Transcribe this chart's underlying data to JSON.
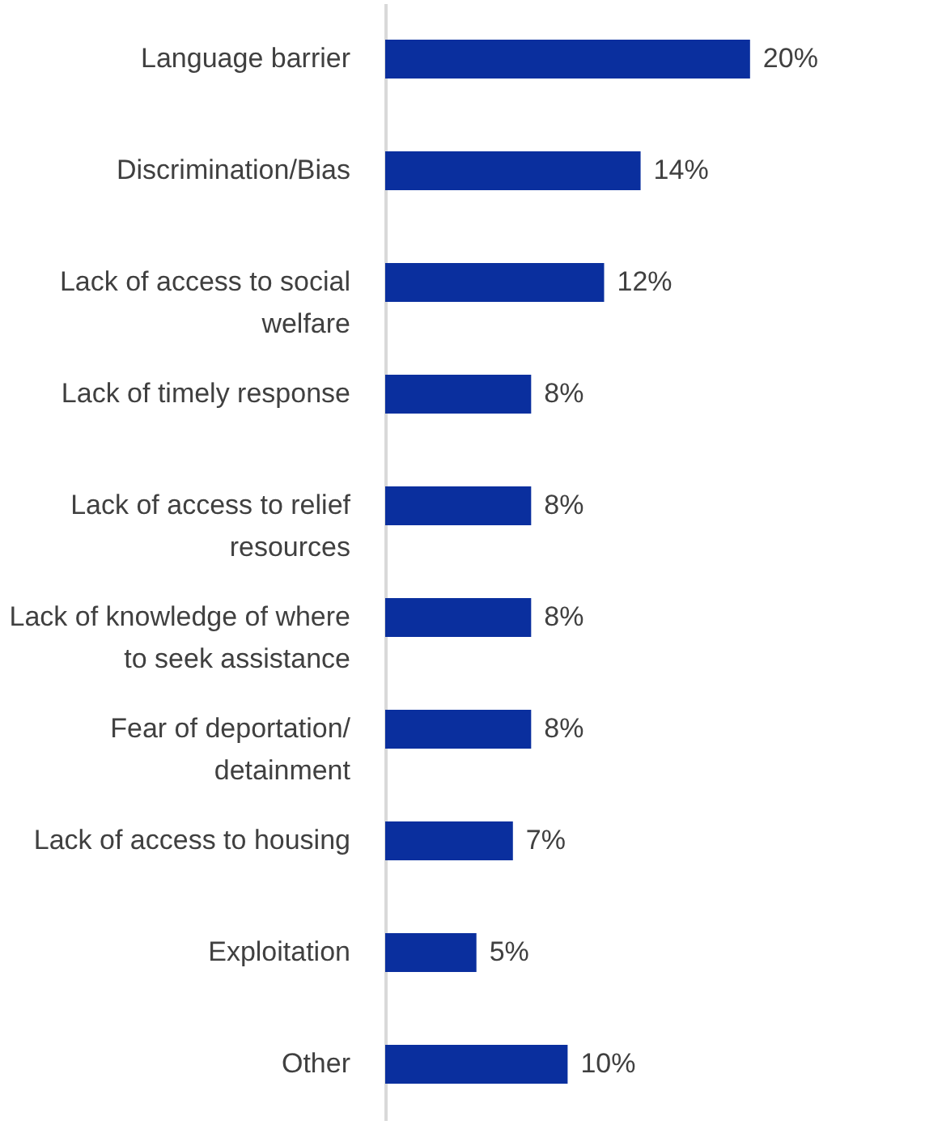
{
  "chart_data": {
    "type": "bar",
    "orientation": "horizontal",
    "data_labels": true,
    "categories": [
      "Language barrier",
      "Discrimination/Bias",
      "Lack of access to social\nwelfare",
      "Lack of timely response",
      "Lack of access to relief\nresources",
      "Lack of knowledge of where\nto seek assistance",
      "Fear of deportation/\ndetainment",
      "Lack of access to housing",
      "Exploitation",
      "Other"
    ],
    "values": [
      20,
      14,
      12,
      8,
      8,
      8,
      8,
      7,
      5,
      10
    ],
    "color": "#0a2f9e",
    "value_labels": [
      "20%",
      "14%",
      "12%",
      "8%",
      "8%",
      "8%",
      "8%",
      "7%",
      "5%",
      "10%"
    ]
  }
}
